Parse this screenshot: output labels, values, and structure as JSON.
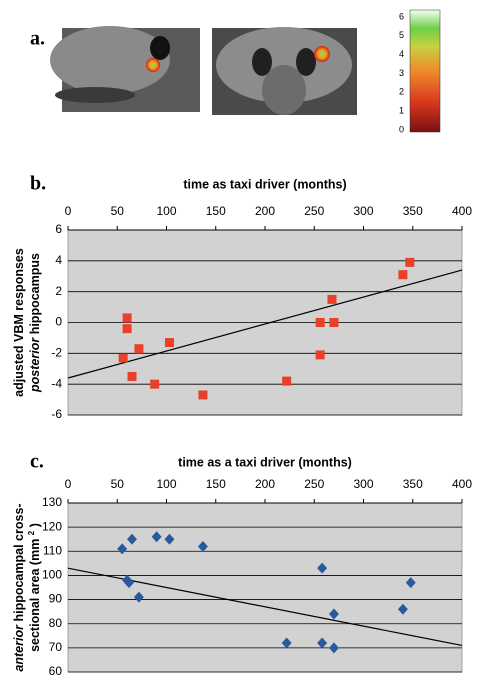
{
  "figure_a": {
    "panel_label": "a.",
    "colorbar": {
      "ticks": [
        0,
        1,
        2,
        3,
        4,
        5,
        6
      ]
    }
  },
  "chart_data": [
    {
      "type": "scatter",
      "panel_label": "b.",
      "title": "time as taxi driver (months)",
      "ylabel": {
        "line1": "adjusted VBM responses",
        "line2_italic": "posterior",
        "line2": "hippocampus"
      },
      "x": [
        56,
        60,
        60,
        65,
        72,
        88,
        103,
        137,
        222,
        256,
        256,
        268,
        270,
        340,
        347
      ],
      "y": [
        -2.3,
        0.3,
        -0.4,
        -3.5,
        -1.7,
        -4.0,
        -1.3,
        -4.7,
        -3.8,
        -2.1,
        0.0,
        1.5,
        0.0,
        3.1,
        3.9
      ],
      "color": "#e8402a",
      "marker": "square",
      "trendline": {
        "x": [
          0,
          400
        ],
        "y": [
          -3.6,
          3.4
        ]
      },
      "xlim": [
        0,
        400
      ],
      "xticks": [
        0,
        50,
        100,
        150,
        200,
        250,
        300,
        350,
        400
      ],
      "ylim": [
        -6,
        6
      ],
      "yticks": [
        -6,
        -4,
        -2,
        0,
        2,
        4,
        6
      ],
      "grid": true
    },
    {
      "type": "scatter",
      "panel_label": "c.",
      "title": "time as a taxi driver (months)",
      "ylabel": {
        "line1_italic": "anterior",
        "line1": "hippocampal cross-",
        "line2": "sectional area (mm",
        "sup": "2",
        "line2_end": ")"
      },
      "x": [
        55,
        60,
        62,
        65,
        72,
        90,
        103,
        137,
        222,
        258,
        258,
        270,
        270,
        340,
        348
      ],
      "y": [
        111,
        98,
        97,
        115,
        91,
        116,
        115,
        112,
        72,
        103,
        72,
        84,
        70,
        86,
        97
      ],
      "color": "#2a5a9e",
      "marker": "diamond",
      "trendline": {
        "x": [
          0,
          400
        ],
        "y": [
          103,
          71
        ]
      },
      "xlim": [
        0,
        400
      ],
      "xticks": [
        0,
        50,
        100,
        150,
        200,
        250,
        300,
        350,
        400
      ],
      "ylim": [
        60,
        130
      ],
      "yticks": [
        60,
        70,
        80,
        90,
        100,
        110,
        120,
        130
      ],
      "grid": true
    }
  ]
}
